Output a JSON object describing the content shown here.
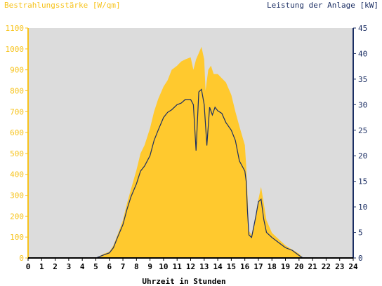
{
  "chart_data": {
    "type": "area",
    "title_left": "Bestrahlungsstärke [W/qm]",
    "title_right": "Leistung der Anlage [kW]",
    "xlabel": "Uhrzeit in Stunden",
    "xlim": [
      0,
      24
    ],
    "ylim_left": [
      0,
      1100
    ],
    "ylim_right": [
      0,
      45
    ],
    "x_ticks": [
      0,
      1,
      2,
      3,
      4,
      5,
      6,
      7,
      8,
      9,
      10,
      11,
      12,
      13,
      14,
      15,
      16,
      17,
      18,
      19,
      20,
      21,
      22,
      23,
      24
    ],
    "y_ticks_left": [
      0,
      100,
      200,
      300,
      400,
      500,
      600,
      700,
      800,
      900,
      1000,
      1100
    ],
    "y_ticks_right": [
      0,
      5,
      10,
      15,
      20,
      25,
      30,
      35,
      40,
      45
    ],
    "colors": {
      "irradiance": "#ffc92e",
      "power": "#1b2e63",
      "plot_bg": "#dcdcdc",
      "left_axis": "#f7c31c",
      "right_axis": "#1b2e63"
    },
    "series": [
      {
        "name": "Bestrahlungsstärke [W/qm]",
        "axis": "left",
        "style": "area",
        "x": [
          0,
          5.0,
          5.3,
          5.6,
          6.0,
          6.3,
          6.6,
          7.0,
          7.3,
          7.6,
          8.0,
          8.3,
          8.6,
          9.0,
          9.3,
          9.6,
          10.0,
          10.3,
          10.6,
          11.0,
          11.3,
          11.6,
          12.0,
          12.2,
          12.4,
          12.6,
          12.8,
          13.0,
          13.1,
          13.3,
          13.5,
          13.7,
          14.0,
          14.3,
          14.6,
          15.0,
          15.3,
          15.6,
          16.0,
          16.1,
          16.2,
          16.3,
          16.5,
          16.8,
          17.0,
          17.2,
          17.4,
          17.6,
          18.0,
          18.5,
          19.0,
          19.5,
          20.0,
          20.3,
          24
        ],
        "values": [
          0,
          0,
          10,
          20,
          30,
          60,
          110,
          180,
          260,
          330,
          420,
          500,
          540,
          620,
          700,
          760,
          820,
          850,
          900,
          920,
          940,
          950,
          960,
          900,
          950,
          980,
          1010,
          950,
          800,
          900,
          920,
          880,
          880,
          860,
          840,
          780,
          700,
          630,
          540,
          440,
          300,
          130,
          110,
          200,
          280,
          340,
          260,
          180,
          120,
          90,
          60,
          40,
          20,
          0,
          0
        ]
      },
      {
        "name": "Leistung der Anlage [kW]",
        "axis": "right",
        "style": "line",
        "x": [
          0,
          5.0,
          5.3,
          5.6,
          6.0,
          6.3,
          6.6,
          7.0,
          7.3,
          7.6,
          8.0,
          8.3,
          8.6,
          9.0,
          9.3,
          9.6,
          10.0,
          10.3,
          10.6,
          11.0,
          11.3,
          11.6,
          12.0,
          12.2,
          12.4,
          12.6,
          12.8,
          13.0,
          13.2,
          13.4,
          13.6,
          13.8,
          14.0,
          14.3,
          14.6,
          15.0,
          15.3,
          15.6,
          16.0,
          16.1,
          16.2,
          16.3,
          16.5,
          16.8,
          17.0,
          17.2,
          17.4,
          17.6,
          18.0,
          18.5,
          19.0,
          19.5,
          20.0,
          20.3,
          24
        ],
        "values": [
          0,
          0,
          0.3,
          0.6,
          1.0,
          2.0,
          4.0,
          6.5,
          9.5,
          12.0,
          14.5,
          17.0,
          18.0,
          20.0,
          23.0,
          25.0,
          27.5,
          28.5,
          29.0,
          30.0,
          30.3,
          31.0,
          31.0,
          30.0,
          21.0,
          32.5,
          33.0,
          30.0,
          22.0,
          29.5,
          28.0,
          29.5,
          28.8,
          28.3,
          26.5,
          25.0,
          23.0,
          19.0,
          17.0,
          15.0,
          9.0,
          4.5,
          4.0,
          8.0,
          11.0,
          11.5,
          7.5,
          5.0,
          4.0,
          3.0,
          2.0,
          1.5,
          0.5,
          0,
          0
        ]
      }
    ]
  }
}
